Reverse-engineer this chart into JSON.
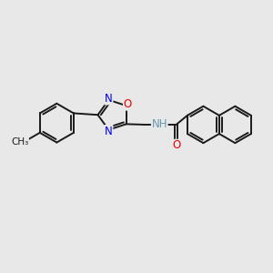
{
  "bg_color": "#e8e8e8",
  "bond_color": "#1a1a1a",
  "bond_width": 1.4,
  "atom_colors": {
    "N": "#0000ee",
    "O": "#ee0000",
    "H": "#6699aa",
    "C": "#1a1a1a"
  },
  "font_size": 8.5,
  "fig_bg": "#e8e8e8"
}
